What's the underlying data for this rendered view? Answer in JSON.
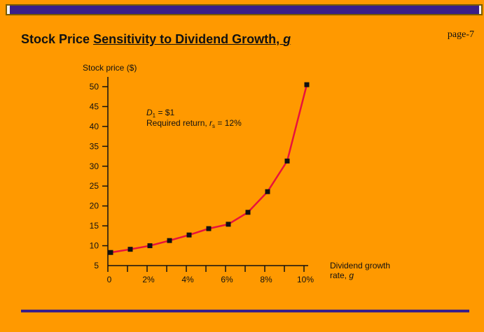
{
  "header": {
    "title_prefix": "Stock Price ",
    "title_underlined": "Sensitivity to Dividend Growth, ",
    "title_symbol": "g",
    "page_label": "page-7"
  },
  "colors": {
    "background": "#FF9900",
    "accent_bar": "#3a1f8a",
    "series_line": "#E8123C",
    "marker": "#111111"
  },
  "chart_data": {
    "type": "line",
    "title": "Stock Price Sensitivity to Dividend Growth, g",
    "ylabel": "Stock price ($)",
    "xlabel": "Dividend growth rate, g",
    "xlabel_line1": "Dividend growth",
    "xlabel_line2_prefix": "rate, ",
    "xlabel_line2_symbol": "g",
    "ylim": [
      5,
      50
    ],
    "xlim": [
      0,
      10
    ],
    "yticks": [
      5,
      10,
      15,
      20,
      25,
      30,
      35,
      40,
      45,
      50
    ],
    "ytick_labels": [
      "5",
      "10",
      "15",
      "20",
      "25",
      "30",
      "35",
      "40",
      "45",
      "50"
    ],
    "xticks_minor": [
      0,
      1,
      2,
      3,
      4,
      5,
      6,
      7,
      8,
      9,
      10
    ],
    "xticks_labeled": [
      0,
      2,
      4,
      6,
      8,
      10
    ],
    "xtick_labels": [
      "0",
      "2%",
      "4%",
      "6%",
      "8%",
      "10%"
    ],
    "grid": false,
    "series": [
      {
        "x": [
          0,
          1,
          2,
          3,
          4,
          5,
          6,
          7,
          8,
          9,
          10
        ],
        "values": [
          8.3,
          9.1,
          10.0,
          11.3,
          12.7,
          14.3,
          15.4,
          18.4,
          23.6,
          31.3,
          50.5
        ]
      }
    ],
    "annotation": {
      "line1_var": "D",
      "line1_sub": "1",
      "line1_rest": " = $1",
      "line2_prefix": "Required return, ",
      "line2_var": "r",
      "line2_sub": "s",
      "line2_rest": " = 12%"
    }
  }
}
